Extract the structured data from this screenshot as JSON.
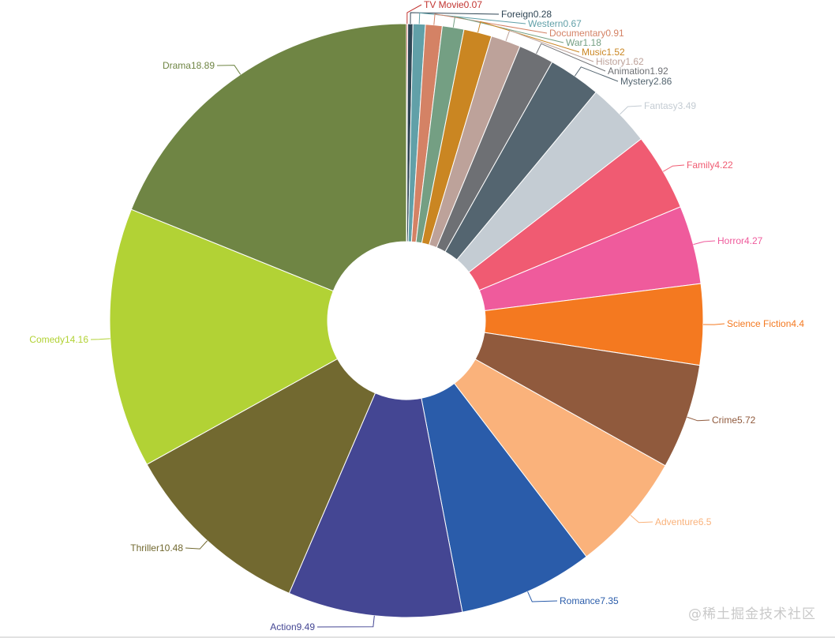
{
  "chart_data": {
    "type": "pie",
    "variant": "donut",
    "start_angle_deg": 90,
    "direction": "clockwise",
    "slices": [
      {
        "label": "TV Movie",
        "value": 0.07,
        "color": "#c23531"
      },
      {
        "label": "Foreign",
        "value": 0.28,
        "color": "#2f4554"
      },
      {
        "label": "Western",
        "value": 0.67,
        "color": "#61a0a8"
      },
      {
        "label": "Documentary",
        "value": 0.91,
        "color": "#d48265"
      },
      {
        "label": "War",
        "value": 1.18,
        "color": "#749f83"
      },
      {
        "label": "Music",
        "value": 1.52,
        "color": "#ca8622"
      },
      {
        "label": "History",
        "value": 1.62,
        "color": "#bda29a"
      },
      {
        "label": "Animation",
        "value": 1.92,
        "color": "#6e7074"
      },
      {
        "label": "Mystery",
        "value": 2.86,
        "color": "#546570"
      },
      {
        "label": "Fantasy",
        "value": 3.49,
        "color": "#c4ccd3"
      },
      {
        "label": "Family",
        "value": 4.22,
        "color": "#f05b72"
      },
      {
        "label": "Horror",
        "value": 4.27,
        "color": "#ef5b9c"
      },
      {
        "label": "Science Fiction",
        "value": 4.4,
        "color": "#f47920"
      },
      {
        "label": "Crime",
        "value": 5.72,
        "color": "#905a3d"
      },
      {
        "label": "Adventure",
        "value": 6.5,
        "color": "#fab27b"
      },
      {
        "label": "Romance",
        "value": 7.35,
        "color": "#2a5caa"
      },
      {
        "label": "Action",
        "value": 9.49,
        "color": "#444693"
      },
      {
        "label": "Thriller",
        "value": 10.48,
        "color": "#726930"
      },
      {
        "label": "Comedy",
        "value": 14.16,
        "color": "#b2d235"
      },
      {
        "label": "Drama",
        "value": 18.89,
        "color": "#6f8544"
      }
    ]
  },
  "watermark": "@稀土掘金技术社区"
}
